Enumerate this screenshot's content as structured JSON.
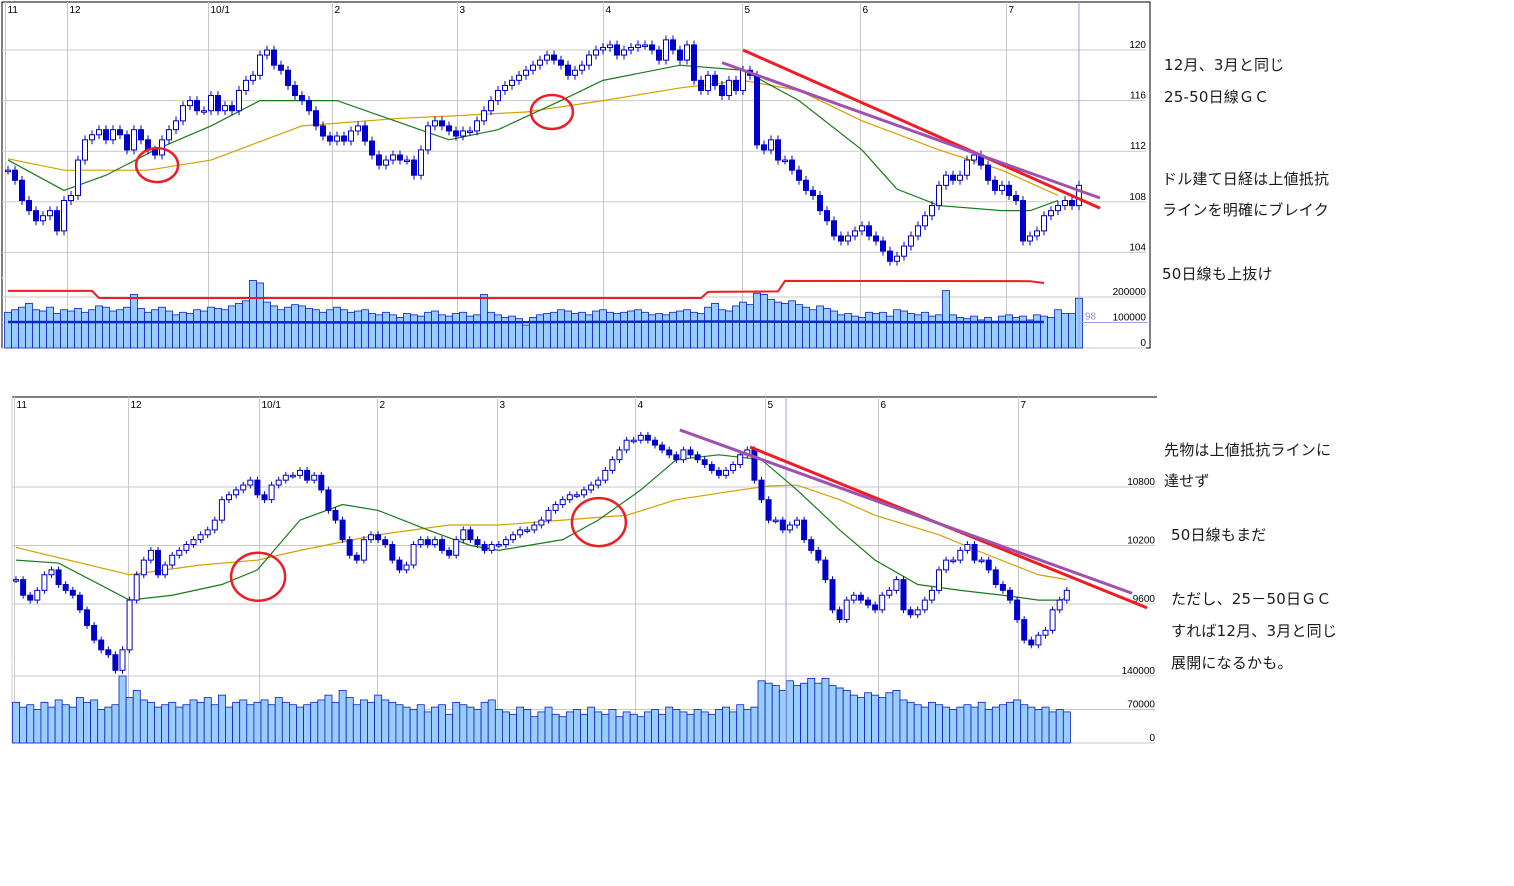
{
  "annotations": {
    "top": [
      "12月、3月と同じ",
      "25-50日線ＧＣ",
      "ドル建て日経は上値抵抗",
      "ラインを明確にブレイク",
      "50日線も上抜け"
    ],
    "bottom": [
      "先物は上値抵抗ラインに",
      "達せず",
      "50日線もまだ",
      "ただし、25－50日ＧＣ",
      "すれば12月、3月と同じ",
      "展開になるかも。"
    ]
  },
  "colors": {
    "candle": "#0000c8",
    "ma_short": "#1a7a1a",
    "ma_long": "#d4a000",
    "trend_red": "#ee1c24",
    "trend_purple": "#a050b0",
    "volume_bar": "#99ccff",
    "volume_line_red": "#ee1c1c",
    "volume_line_blue": "#0a28c8",
    "grid": "#c8c8c8"
  },
  "chart_data": [
    {
      "type": "candlestick",
      "x_labels": [
        {
          "label": "11",
          "index": -0.5
        },
        {
          "label": "12",
          "index": 8.4
        },
        {
          "label": "10/1",
          "index": 28.6
        },
        {
          "label": "2",
          "index": 46.3
        },
        {
          "label": "3",
          "index": 64.1
        },
        {
          "label": "4",
          "index": 85
        },
        {
          "label": "5",
          "index": 104.9
        },
        {
          "label": "6",
          "index": 121.7
        },
        {
          "label": "7",
          "index": 142.6
        }
      ],
      "y_ticks": [
        "120",
        "116",
        "112",
        "108",
        "104"
      ],
      "volume_ticks": [
        "200000",
        "100000",
        "0"
      ],
      "volume_marker_label": "98",
      "close": [
        110.5,
        109.7,
        108.1,
        107.3,
        106.5,
        106.9,
        107.3,
        105.7,
        108.1,
        108.5,
        111.3,
        112.9,
        113.3,
        113.7,
        112.9,
        113.7,
        113.3,
        112.1,
        113.7,
        112.9,
        112.1,
        111.7,
        112.9,
        113.7,
        114.4,
        115.6,
        116,
        115.2,
        115.2,
        116.4,
        115.2,
        115.6,
        115.2,
        116.8,
        117.6,
        118,
        119.6,
        120,
        118.8,
        118.4,
        117.2,
        116.4,
        116,
        115.2,
        114,
        113.2,
        112.8,
        113.2,
        112.8,
        113.6,
        114,
        112.8,
        111.7,
        110.9,
        111.3,
        111.7,
        111.3,
        111.3,
        110.1,
        112.1,
        114,
        114.4,
        114,
        113.6,
        113.2,
        113.6,
        113.6,
        114.4,
        115.2,
        116,
        116.8,
        117.2,
        117.6,
        118,
        118.4,
        118.8,
        119.2,
        119.6,
        119.2,
        118.8,
        118,
        118.4,
        118.8,
        119.6,
        120,
        120.2,
        120.4,
        119.6,
        120,
        120.2,
        120.4,
        120.4,
        120,
        119.2,
        120.8,
        120,
        119.2,
        120.4,
        117.6,
        116.8,
        118,
        117.2,
        116.4,
        117.6,
        116.8,
        118.4,
        118,
        112.5,
        112.1,
        112.9,
        111.3,
        111.3,
        110.5,
        109.7,
        108.9,
        108.5,
        107.3,
        106.5,
        105.3,
        104.9,
        105.3,
        105.7,
        106.1,
        105.3,
        104.9,
        104.1,
        103.3,
        103.7,
        104.5,
        105.3,
        106.1,
        106.9,
        107.7,
        109.3,
        110.1,
        109.7,
        110.1,
        111.3,
        111.7,
        110.9,
        109.7,
        108.9,
        109.3,
        108.5,
        108.1,
        104.9,
        105.3,
        105.7,
        106.9,
        107.3,
        107.7,
        108.1,
        107.7,
        109.3
      ],
      "volume": [
        140000,
        150000,
        160000,
        175000,
        150000,
        145000,
        160000,
        135000,
        150000,
        145000,
        155000,
        140000,
        150000,
        165000,
        160000,
        145000,
        150000,
        160000,
        210000,
        155000,
        140000,
        150000,
        160000,
        145000,
        130000,
        140000,
        135000,
        150000,
        145000,
        160000,
        155000,
        150000,
        165000,
        175000,
        185000,
        265000,
        255000,
        180000,
        165000,
        150000,
        160000,
        170000,
        165000,
        155000,
        150000,
        140000,
        150000,
        160000,
        150000,
        140000,
        145000,
        150000,
        135000,
        130000,
        140000,
        130000,
        120000,
        135000,
        130000,
        125000,
        140000,
        145000,
        130000,
        125000,
        135000,
        140000,
        125000,
        130000,
        210000,
        140000,
        130000,
        120000,
        125000,
        115000,
        90000,
        120000,
        130000,
        135000,
        140000,
        150000,
        145000,
        135000,
        140000,
        130000,
        145000,
        150000,
        140000,
        135000,
        140000,
        145000,
        150000,
        140000,
        130000,
        135000,
        130000,
        140000,
        145000,
        150000,
        140000,
        135000,
        160000,
        175000,
        150000,
        145000,
        165000,
        180000,
        170000,
        215000,
        210000,
        190000,
        180000,
        175000,
        185000,
        170000,
        160000,
        150000,
        165000,
        155000,
        145000,
        130000,
        135000,
        125000,
        120000,
        140000,
        135000,
        140000,
        125000,
        150000,
        145000,
        135000,
        130000,
        140000,
        125000,
        130000,
        225000,
        130000,
        120000,
        115000,
        125000,
        110000,
        120000,
        105000,
        125000,
        130000,
        120000,
        125000,
        110000,
        130000,
        125000,
        120000,
        150000,
        135000,
        135000,
        195000
      ],
      "ma_short": [
        [
          0,
          111.3
        ],
        [
          8,
          108.9
        ],
        [
          14,
          110.1
        ],
        [
          21,
          112.1
        ],
        [
          29,
          114.0
        ],
        [
          36,
          116.0
        ],
        [
          47,
          116.0
        ],
        [
          63,
          112.9
        ],
        [
          70,
          113.7
        ],
        [
          79,
          116.0
        ],
        [
          85,
          117.6
        ],
        [
          96,
          118.8
        ],
        [
          105,
          118.4
        ],
        [
          113,
          116.0
        ],
        [
          122,
          112.1
        ],
        [
          127,
          109.0
        ],
        [
          133,
          107.7
        ],
        [
          142,
          107.3
        ],
        [
          146,
          107.3
        ],
        [
          150,
          108.1
        ]
      ],
      "ma_long": [
        [
          0,
          111.4
        ],
        [
          8,
          110.5
        ],
        [
          20,
          110.5
        ],
        [
          29,
          111.3
        ],
        [
          42,
          114.0
        ],
        [
          56,
          114.6
        ],
        [
          64,
          114.8
        ],
        [
          74,
          115.1
        ],
        [
          85,
          116.0
        ],
        [
          96,
          117.0
        ],
        [
          105,
          117.6
        ],
        [
          113,
          116.8
        ],
        [
          122,
          114.4
        ],
        [
          133,
          112.1
        ],
        [
          142,
          110.5
        ],
        [
          150,
          108.5
        ]
      ],
      "volume_line_red": [
        [
          0,
          224000
        ],
        [
          12,
          224000
        ],
        [
          13,
          196000
        ],
        [
          99,
          196000
        ],
        [
          100,
          220000
        ],
        [
          110,
          222000
        ],
        [
          111,
          263000
        ],
        [
          146,
          262000
        ],
        [
          148,
          255000
        ]
      ],
      "volume_line_blue": [
        [
          0,
          102000
        ],
        [
          60,
          100000
        ],
        [
          100,
          104000
        ],
        [
          130,
          101000
        ],
        [
          148,
          102000
        ]
      ],
      "trendlines": [
        {
          "color": "red",
          "from": [
            105,
            120.0
          ],
          "to": [
            156,
            107.5
          ]
        },
        {
          "color": "purple",
          "from": [
            102,
            119.0
          ],
          "to": [
            156,
            108.3
          ]
        }
      ],
      "circles": [
        [
          21.3,
          110.9
        ],
        [
          77.7,
          115.1
        ]
      ]
    },
    {
      "type": "candlestick",
      "x_labels": [
        {
          "label": "11",
          "index": -0.3
        },
        {
          "label": "12",
          "index": 15.8
        },
        {
          "label": "10/1",
          "index": 34.2
        },
        {
          "label": "2",
          "index": 50.8
        },
        {
          "label": "3",
          "index": 67.7
        },
        {
          "label": "4",
          "index": 87.2
        },
        {
          "label": "5",
          "index": 105.5
        },
        {
          "label": "6",
          "index": 121.4
        },
        {
          "label": "7",
          "index": 141.1
        }
      ],
      "y_ticks": [
        "10800",
        "10200",
        "9600"
      ],
      "volume_ticks": [
        "140000",
        "70000",
        "0"
      ],
      "close": [
        9850,
        9690,
        9640,
        9740,
        9900,
        9950,
        9800,
        9740,
        9690,
        9540,
        9380,
        9230,
        9130,
        9080,
        8920,
        9130,
        9640,
        9900,
        10050,
        10150,
        9900,
        10000,
        10100,
        10150,
        10210,
        10260,
        10310,
        10360,
        10460,
        10670,
        10720,
        10770,
        10820,
        10870,
        10720,
        10670,
        10820,
        10870,
        10920,
        10920,
        10970,
        10870,
        10920,
        10770,
        10560,
        10460,
        10260,
        10100,
        10050,
        10260,
        10310,
        10260,
        10210,
        10050,
        9950,
        10000,
        10210,
        10260,
        10210,
        10260,
        10150,
        10100,
        10260,
        10360,
        10260,
        10210,
        10150,
        10210,
        10210,
        10260,
        10310,
        10360,
        10360,
        10410,
        10460,
        10560,
        10620,
        10670,
        10720,
        10720,
        10770,
        10820,
        10870,
        10970,
        11080,
        11180,
        11280,
        11280,
        11330,
        11280,
        11230,
        11180,
        11130,
        11080,
        11180,
        11130,
        11080,
        11030,
        10970,
        10920,
        10970,
        11030,
        11130,
        11180,
        10870,
        10670,
        10460,
        10460,
        10360,
        10410,
        10460,
        10260,
        10150,
        10050,
        9850,
        9540,
        9440,
        9640,
        9690,
        9640,
        9590,
        9540,
        9690,
        9740,
        9850,
        9540,
        9490,
        9540,
        9640,
        9740,
        9950,
        10050,
        10050,
        10150,
        10210,
        10050,
        10050,
        9950,
        9800,
        9740,
        9640,
        9440,
        9230,
        9180,
        9280,
        9330,
        9540,
        9640,
        9740
      ],
      "volume": [
        85000,
        75000,
        80000,
        70000,
        85000,
        75000,
        90000,
        80000,
        75000,
        95000,
        85000,
        90000,
        70000,
        75000,
        80000,
        140000,
        95000,
        110000,
        90000,
        85000,
        75000,
        80000,
        85000,
        75000,
        80000,
        90000,
        85000,
        95000,
        80000,
        100000,
        75000,
        85000,
        90000,
        80000,
        85000,
        90000,
        80000,
        95000,
        85000,
        80000,
        75000,
        80000,
        85000,
        90000,
        100000,
        85000,
        110000,
        95000,
        80000,
        90000,
        85000,
        100000,
        90000,
        85000,
        80000,
        75000,
        70000,
        80000,
        65000,
        75000,
        80000,
        60000,
        85000,
        80000,
        75000,
        70000,
        85000,
        90000,
        70000,
        65000,
        60000,
        75000,
        70000,
        55000,
        65000,
        75000,
        60000,
        55000,
        65000,
        70000,
        60000,
        75000,
        65000,
        60000,
        70000,
        55000,
        65000,
        60000,
        55000,
        65000,
        70000,
        60000,
        75000,
        70000,
        65000,
        60000,
        70000,
        65000,
        60000,
        70000,
        75000,
        65000,
        80000,
        70000,
        75000,
        130000,
        125000,
        120000,
        110000,
        130000,
        120000,
        125000,
        135000,
        125000,
        135000,
        120000,
        115000,
        110000,
        100000,
        95000,
        105000,
        100000,
        95000,
        105000,
        110000,
        90000,
        85000,
        80000,
        75000,
        85000,
        80000,
        75000,
        70000,
        75000,
        80000,
        75000,
        85000,
        70000,
        75000,
        80000,
        85000,
        90000,
        80000,
        75000,
        70000,
        75000,
        65000,
        70000,
        65000
      ],
      "ma_short": [
        [
          0,
          10050
        ],
        [
          6,
          10020
        ],
        [
          16,
          9640
        ],
        [
          22,
          9690
        ],
        [
          29,
          9800
        ],
        [
          34,
          9950
        ],
        [
          40,
          10460
        ],
        [
          46,
          10620
        ],
        [
          51,
          10560
        ],
        [
          58,
          10360
        ],
        [
          64,
          10200
        ],
        [
          68,
          10150
        ],
        [
          77,
          10260
        ],
        [
          82,
          10460
        ],
        [
          88,
          10770
        ],
        [
          93,
          11080
        ],
        [
          99,
          11130
        ],
        [
          105,
          11080
        ],
        [
          110,
          10770
        ],
        [
          116,
          10360
        ],
        [
          121,
          10050
        ],
        [
          127,
          9800
        ],
        [
          133,
          9740
        ],
        [
          139,
          9690
        ],
        [
          144,
          9640
        ],
        [
          147,
          9640
        ],
        [
          148,
          9660
        ]
      ],
      "ma_long": [
        [
          0,
          10180
        ],
        [
          16,
          9900
        ],
        [
          26,
          10000
        ],
        [
          34,
          10050
        ],
        [
          40,
          10150
        ],
        [
          51,
          10310
        ],
        [
          61,
          10410
        ],
        [
          68,
          10410
        ],
        [
          77,
          10460
        ],
        [
          86,
          10510
        ],
        [
          93,
          10670
        ],
        [
          102,
          10770
        ],
        [
          106,
          10810
        ],
        [
          110,
          10820
        ],
        [
          116,
          10670
        ],
        [
          121,
          10510
        ],
        [
          130,
          10310
        ],
        [
          137,
          10100
        ],
        [
          144,
          9900
        ],
        [
          148,
          9850
        ]
      ],
      "trendlines": [
        {
          "color": "red",
          "from": [
            103.4,
            11210
          ],
          "to": [
            159.3,
            9560
          ]
        },
        {
          "color": "purple",
          "from": [
            93.5,
            11385
          ],
          "to": [
            157.2,
            9710
          ]
        }
      ],
      "circles": [
        [
          34.1,
          9880
        ],
        [
          82.1,
          10440
        ]
      ]
    }
  ]
}
